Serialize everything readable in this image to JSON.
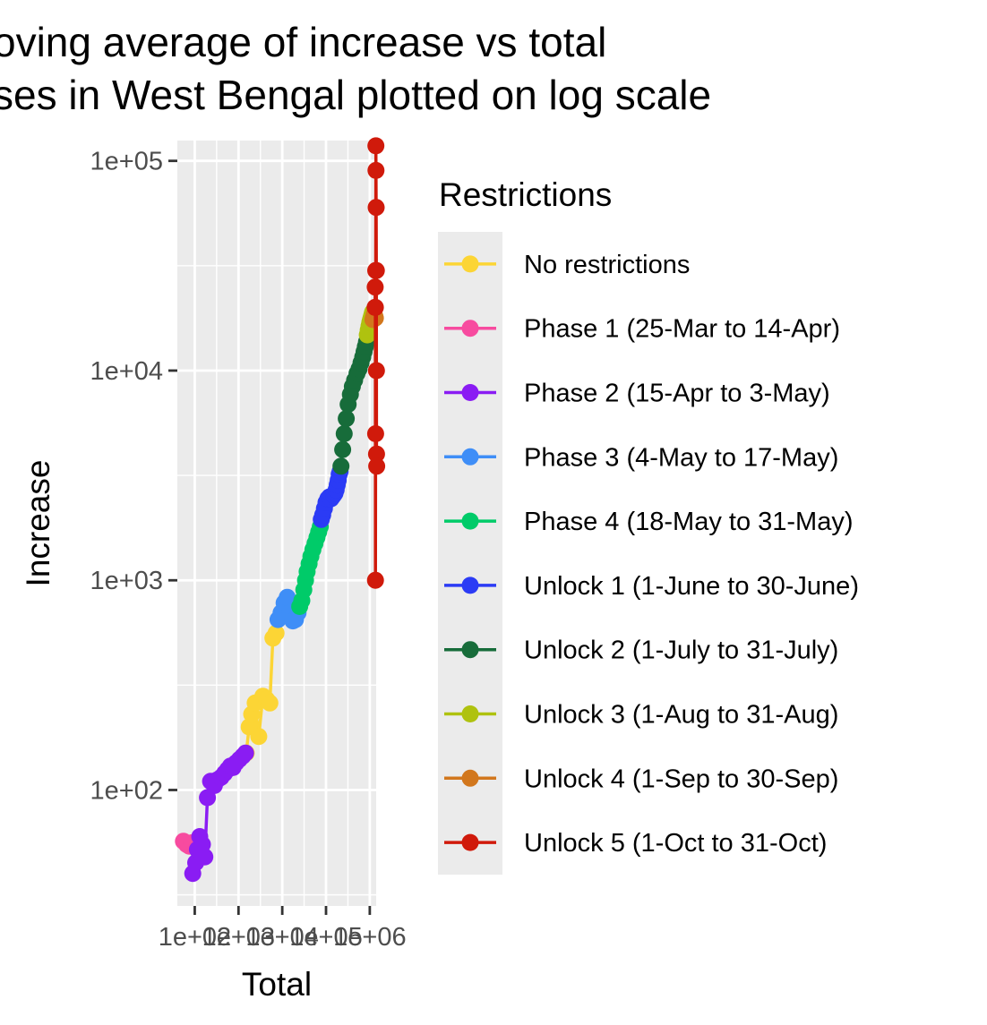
{
  "chart_data": {
    "type": "line",
    "title_lines": [
      "oving average of increase vs total",
      "ses in West Bengal plotted on log scale"
    ],
    "xlabel": "Total",
    "ylabel": "Increase",
    "x_scale": "log10",
    "y_scale": "log10",
    "xlim": [
      40,
      1400000
    ],
    "ylim": [
      28,
      125000
    ],
    "x_ticks": [
      {
        "value": 100,
        "label": "1e+02"
      },
      {
        "value": 1000,
        "label": "1e+03"
      },
      {
        "value": 10000,
        "label": "1e+04"
      },
      {
        "value": 100000,
        "label": "1e+05"
      },
      {
        "value": 1000000,
        "label": "1e+06"
      }
    ],
    "y_ticks": [
      {
        "value": 100,
        "label": "1e+02"
      },
      {
        "value": 1000,
        "label": "1e+03"
      },
      {
        "value": 10000,
        "label": "1e+04"
      },
      {
        "value": 100000,
        "label": "1e+05"
      }
    ],
    "grid": true,
    "legend_position": "right",
    "legend_title": "Restrictions",
    "series": [
      {
        "name": "No restrictions",
        "color": "#FCD535",
        "x": [
          1500,
          1750,
          2000,
          2400,
          2900,
          3600,
          4400,
          5200,
          6100,
          7200
        ],
        "y": [
          150,
          200,
          230,
          260,
          180,
          280,
          270,
          260,
          530,
          560
        ]
      },
      {
        "name": "Phase 1 (25-Mar to 14-Apr)",
        "color": "#F74B9F",
        "x": [
          55,
          65,
          75,
          85
        ],
        "y": [
          57,
          55,
          54,
          56
        ]
      },
      {
        "name": "Phase 2 (15-Apr to 3-May)",
        "color": "#8A1CF3",
        "x": [
          90,
          105,
          115,
          130,
          150,
          170,
          195,
          230,
          280,
          330,
          400,
          480,
          560,
          650,
          750,
          880,
          1050,
          1250,
          1450
        ],
        "y": [
          40,
          45,
          52,
          60,
          55,
          48,
          92,
          110,
          105,
          112,
          115,
          120,
          125,
          130,
          128,
          135,
          140,
          145,
          150
        ]
      },
      {
        "name": "Phase 3 (4-May to 17-May)",
        "color": "#3F8EF7",
        "x": [
          8000,
          9400,
          11000,
          13000,
          15000,
          17500,
          20000,
          23000
        ],
        "y": [
          650,
          700,
          780,
          830,
          700,
          640,
          650,
          700
        ]
      },
      {
        "name": "Phase 4 (18-May to 31-May)",
        "color": "#00CB69",
        "x": [
          25000,
          28000,
          31000,
          34000,
          37000,
          41000,
          45000,
          50000,
          56000,
          62000,
          68000,
          74000
        ],
        "y": [
          750,
          800,
          900,
          1000,
          1100,
          1200,
          1300,
          1400,
          1500,
          1600,
          1700,
          1800
        ]
      },
      {
        "name": "Unlock 1 (1-June to 30-June)",
        "color": "#2B3BF5",
        "x": [
          78000,
          84000,
          92000,
          100000,
          110000,
          120000,
          130000,
          140000,
          150000,
          160000,
          170000,
          180000,
          190000,
          200000,
          210000
        ],
        "y": [
          1950,
          2050,
          2200,
          2350,
          2450,
          2500,
          2450,
          2500,
          2550,
          2600,
          2700,
          2850,
          3000,
          3200,
          3300
        ]
      },
      {
        "name": "Unlock 2 (1-July to 31-July)",
        "color": "#176C3A",
        "x": [
          220000,
          240000,
          260000,
          290000,
          320000,
          360000,
          400000,
          450000,
          510000,
          570000,
          630000,
          690000,
          740000,
          790000,
          840000
        ],
        "y": [
          3500,
          4200,
          5000,
          5900,
          6900,
          7700,
          8400,
          9000,
          9700,
          10200,
          10900,
          11600,
          12300,
          13000,
          13700
        ]
      },
      {
        "name": "Unlock 3 (1-Aug to 31-Aug)",
        "color": "#AFC20F",
        "x": [
          880000,
          920000,
          960000,
          1000000,
          1040000,
          1080000,
          1120000,
          1160000
        ],
        "y": [
          14800,
          15600,
          16300,
          17000,
          17500,
          18000,
          18500,
          19000
        ]
      },
      {
        "name": "Unlock 4 (1-Sep to 30-Sep)",
        "color": "#D2771D",
        "x": [
          1180000,
          1220000,
          1260000,
          1300000,
          1340000
        ],
        "y": [
          17500,
          18000,
          18500,
          18200,
          17800
        ]
      },
      {
        "name": "Unlock 5 (1-Oct to 31-Oct)",
        "color": "#D01A0B",
        "x": [
          1320000,
          1330000,
          1340000,
          1350000,
          1360000,
          1370000,
          1380000,
          1390000,
          1400000,
          1410000,
          1420000,
          1430000,
          1440000
        ],
        "y": [
          20000,
          25000,
          20000,
          1000,
          5000,
          30000,
          118000,
          90000,
          60000,
          30000,
          10000,
          4000,
          3500
        ]
      }
    ]
  }
}
